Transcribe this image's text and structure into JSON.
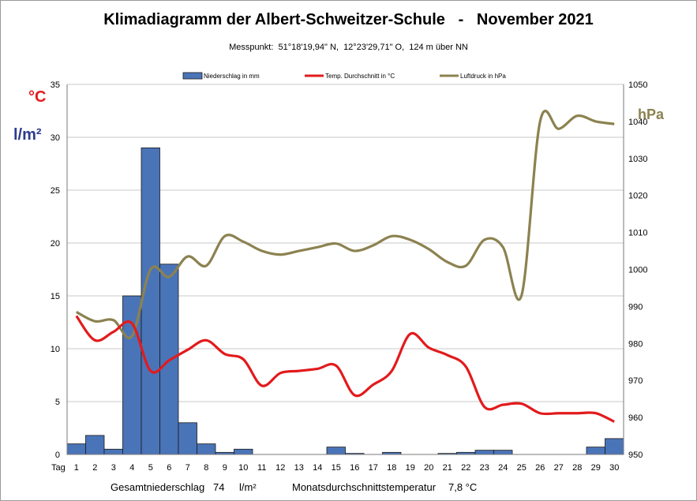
{
  "title": "Klimadiagramm der Albert-Schweitzer-Schule   -   November 2021",
  "subtitle": "Messpunkt:  51°18'19,94\" N,  12°23'29,71\" O,  124 m über NN",
  "units": {
    "celsius": "°C",
    "precip": "l/m²",
    "pressure": "hPa",
    "x_axis_label": "Tag"
  },
  "colors": {
    "bars": "#4a74b8",
    "bar_edge": "#1a1a1a",
    "temp_line": "#e31a1c",
    "pressure_line": "#8c8250",
    "celsius_label": "#e31a1c",
    "precip_label": "#2d3b8f",
    "pressure_label": "#8c8250",
    "grid": "#c8c8c8"
  },
  "footer": {
    "total_precip_label": "Gesamtniederschlag",
    "total_precip_value": "74",
    "total_precip_unit": "l/m²",
    "avg_temp_label": "Monatsdurchschnittstemperatur",
    "avg_temp_value": "7,8 °C"
  },
  "chart_data": {
    "type": "bar",
    "x": [
      1,
      2,
      3,
      4,
      5,
      6,
      7,
      8,
      9,
      10,
      11,
      12,
      13,
      14,
      15,
      16,
      17,
      18,
      19,
      20,
      21,
      22,
      23,
      24,
      25,
      26,
      27,
      28,
      29,
      30
    ],
    "legend_position": "top",
    "grid": true,
    "series": [
      {
        "name": "Niederschlag in mm",
        "type": "bar",
        "axis": "left",
        "values": [
          1.0,
          1.8,
          0.5,
          15.0,
          29.0,
          18.0,
          3.0,
          1.0,
          0.2,
          0.5,
          0,
          0,
          0,
          0,
          0.7,
          0.1,
          0,
          0.2,
          0,
          0,
          0.1,
          0.2,
          0.4,
          0.4,
          0,
          0,
          0,
          0,
          0.7,
          1.5
        ]
      },
      {
        "name": "Temp. Durchschnitt in °C",
        "type": "line",
        "axis": "left",
        "values": [
          13.1,
          10.8,
          11.6,
          12.4,
          7.9,
          8.9,
          9.9,
          10.8,
          9.5,
          9.0,
          6.5,
          7.7,
          7.9,
          8.1,
          8.4,
          5.6,
          6.6,
          7.9,
          11.4,
          10.1,
          9.4,
          8.3,
          4.5,
          4.7,
          4.8,
          3.9,
          3.9,
          3.9,
          3.9,
          3.1
        ]
      },
      {
        "name": "Luftdruck in hPa",
        "type": "line",
        "axis": "right",
        "values": [
          988.5,
          986,
          986.3,
          982,
          1000,
          998,
          1003.5,
          1001,
          1009,
          1007.5,
          1005,
          1004,
          1005,
          1006,
          1007,
          1005,
          1006.5,
          1009,
          1008,
          1005.5,
          1002,
          1001,
          1008,
          1006,
          993,
          1040,
          1038,
          1041.5,
          1040,
          1039.3
        ]
      }
    ],
    "y_left": {
      "ylim": [
        0,
        35
      ],
      "ticks": [
        0,
        5,
        10,
        15,
        20,
        25,
        30,
        35
      ]
    },
    "y_right": {
      "ylim": [
        950,
        1050
      ],
      "ticks": [
        950,
        960,
        970,
        980,
        990,
        1000,
        1010,
        1020,
        1030,
        1040,
        1050
      ]
    }
  }
}
